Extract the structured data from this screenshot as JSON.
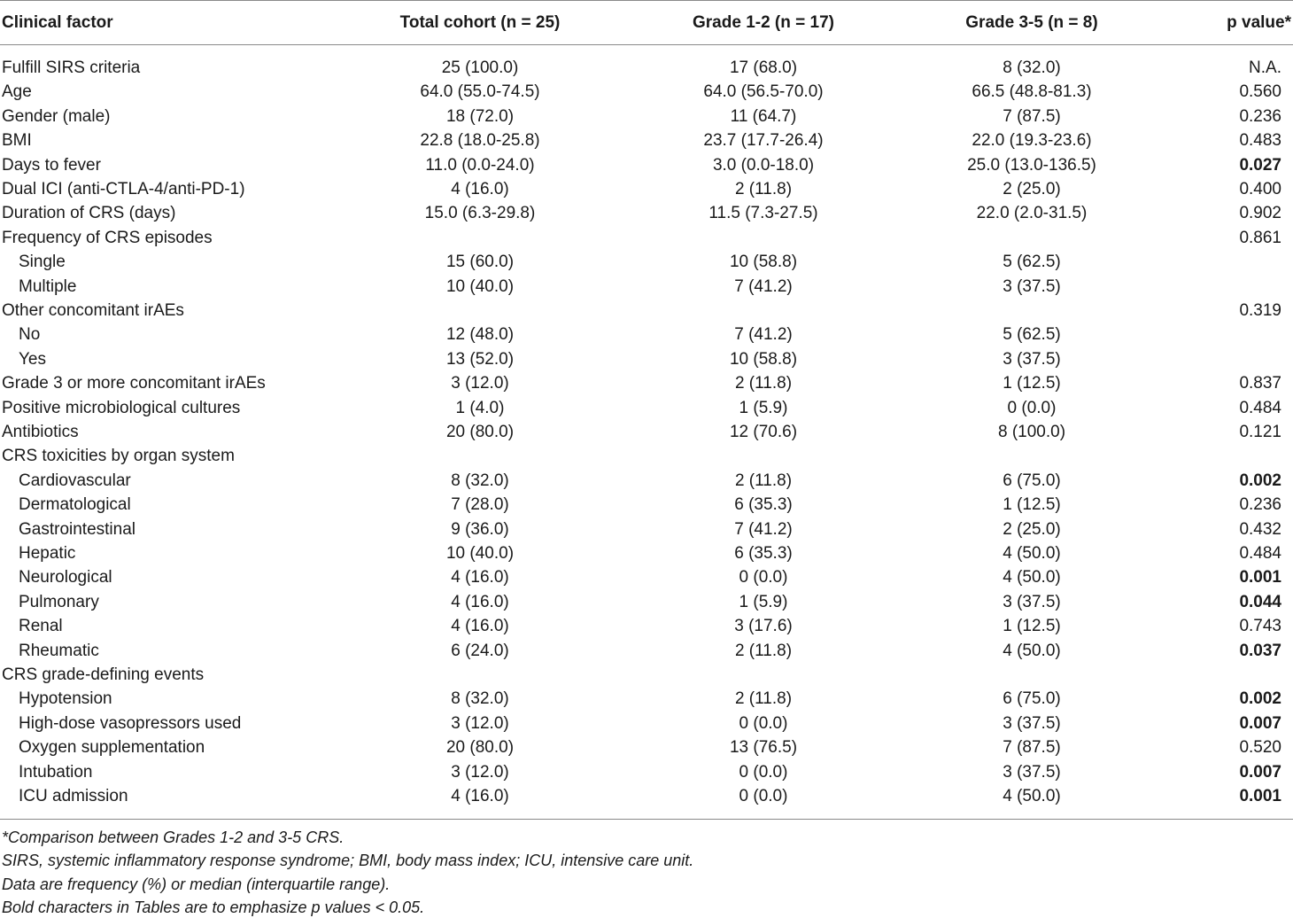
{
  "table": {
    "headers": {
      "clinical_factor": "Clinical factor",
      "total": "Total cohort (n = 25)",
      "grade_1_2": "Grade 1-2 (n = 17)",
      "grade_3_5": "Grade 3-5 (n = 8)",
      "p_value": "p value*"
    },
    "rows": [
      {
        "label": "Fulfill SIRS criteria",
        "indent": false,
        "total": "25 (100.0)",
        "g12": "17 (68.0)",
        "g35": "8 (32.0)",
        "p": "N.A.",
        "p_bold": false
      },
      {
        "label": "Age",
        "indent": false,
        "total": "64.0 (55.0-74.5)",
        "g12": "64.0 (56.5-70.0)",
        "g35": "66.5 (48.8-81.3)",
        "p": "0.560",
        "p_bold": false
      },
      {
        "label": "Gender (male)",
        "indent": false,
        "total": "18 (72.0)",
        "g12": "11 (64.7)",
        "g35": "7 (87.5)",
        "p": "0.236",
        "p_bold": false
      },
      {
        "label": "BMI",
        "indent": false,
        "total": "22.8 (18.0-25.8)",
        "g12": "23.7 (17.7-26.4)",
        "g35": "22.0 (19.3-23.6)",
        "p": "0.483",
        "p_bold": false
      },
      {
        "label": "Days to fever",
        "indent": false,
        "total": "11.0 (0.0-24.0)",
        "g12": "3.0 (0.0-18.0)",
        "g35": "25.0 (13.0-136.5)",
        "p": "0.027",
        "p_bold": true
      },
      {
        "label": "Dual ICI (anti-CTLA-4/anti-PD-1)",
        "indent": false,
        "total": "4 (16.0)",
        "g12": "2 (11.8)",
        "g35": "2 (25.0)",
        "p": "0.400",
        "p_bold": false
      },
      {
        "label": "Duration of CRS (days)",
        "indent": false,
        "total": "15.0 (6.3-29.8)",
        "g12": "11.5 (7.3-27.5)",
        "g35": "22.0 (2.0-31.5)",
        "p": "0.902",
        "p_bold": false
      },
      {
        "label": "Frequency of CRS episodes",
        "indent": false,
        "total": "",
        "g12": "",
        "g35": "",
        "p": "0.861",
        "p_bold": false
      },
      {
        "label": "Single",
        "indent": true,
        "total": "15 (60.0)",
        "g12": "10 (58.8)",
        "g35": "5 (62.5)",
        "p": "",
        "p_bold": false
      },
      {
        "label": "Multiple",
        "indent": true,
        "total": "10 (40.0)",
        "g12": "7 (41.2)",
        "g35": "3 (37.5)",
        "p": "",
        "p_bold": false
      },
      {
        "label": "Other concomitant irAEs",
        "indent": false,
        "total": "",
        "g12": "",
        "g35": "",
        "p": "0.319",
        "p_bold": false
      },
      {
        "label": "No",
        "indent": true,
        "total": "12 (48.0)",
        "g12": "7 (41.2)",
        "g35": "5 (62.5)",
        "p": "",
        "p_bold": false
      },
      {
        "label": "Yes",
        "indent": true,
        "total": "13 (52.0)",
        "g12": "10 (58.8)",
        "g35": "3 (37.5)",
        "p": "",
        "p_bold": false
      },
      {
        "label": "Grade 3 or more concomitant irAEs",
        "indent": false,
        "total": "3 (12.0)",
        "g12": "2 (11.8)",
        "g35": "1 (12.5)",
        "p": "0.837",
        "p_bold": false
      },
      {
        "label": "Positive microbiological cultures",
        "indent": false,
        "total": "1 (4.0)",
        "g12": "1 (5.9)",
        "g35": "0 (0.0)",
        "p": "0.484",
        "p_bold": false
      },
      {
        "label": "Antibiotics",
        "indent": false,
        "total": "20 (80.0)",
        "g12": "12 (70.6)",
        "g35": "8 (100.0)",
        "p": "0.121",
        "p_bold": false
      },
      {
        "label": "CRS toxicities by organ system",
        "indent": false,
        "total": "",
        "g12": "",
        "g35": "",
        "p": "",
        "p_bold": false
      },
      {
        "label": "Cardiovascular",
        "indent": true,
        "total": "8 (32.0)",
        "g12": "2 (11.8)",
        "g35": "6 (75.0)",
        "p": "0.002",
        "p_bold": true
      },
      {
        "label": "Dermatological",
        "indent": true,
        "total": "7 (28.0)",
        "g12": "6 (35.3)",
        "g35": "1 (12.5)",
        "p": "0.236",
        "p_bold": false
      },
      {
        "label": "Gastrointestinal",
        "indent": true,
        "total": "9 (36.0)",
        "g12": "7 (41.2)",
        "g35": "2 (25.0)",
        "p": "0.432",
        "p_bold": false
      },
      {
        "label": "Hepatic",
        "indent": true,
        "total": "10 (40.0)",
        "g12": "6 (35.3)",
        "g35": "4 (50.0)",
        "p": "0.484",
        "p_bold": false
      },
      {
        "label": "Neurological",
        "indent": true,
        "total": "4 (16.0)",
        "g12": "0 (0.0)",
        "g35": "4 (50.0)",
        "p": "0.001",
        "p_bold": true
      },
      {
        "label": "Pulmonary",
        "indent": true,
        "total": "4 (16.0)",
        "g12": "1 (5.9)",
        "g35": "3 (37.5)",
        "p": "0.044",
        "p_bold": true
      },
      {
        "label": "Renal",
        "indent": true,
        "total": "4 (16.0)",
        "g12": "3 (17.6)",
        "g35": "1 (12.5)",
        "p": "0.743",
        "p_bold": false
      },
      {
        "label": "Rheumatic",
        "indent": true,
        "total": "6 (24.0)",
        "g12": "2 (11.8)",
        "g35": "4 (50.0)",
        "p": "0.037",
        "p_bold": true
      },
      {
        "label": "CRS grade-defining events",
        "indent": false,
        "total": "",
        "g12": "",
        "g35": "",
        "p": "",
        "p_bold": false
      },
      {
        "label": "Hypotension",
        "indent": true,
        "total": "8 (32.0)",
        "g12": "2 (11.8)",
        "g35": "6 (75.0)",
        "p": "0.002",
        "p_bold": true
      },
      {
        "label": "High-dose vasopressors used",
        "indent": true,
        "total": "3 (12.0)",
        "g12": "0 (0.0)",
        "g35": "3 (37.5)",
        "p": "0.007",
        "p_bold": true
      },
      {
        "label": "Oxygen supplementation",
        "indent": true,
        "total": "20 (80.0)",
        "g12": "13 (76.5)",
        "g35": "7 (87.5)",
        "p": "0.520",
        "p_bold": false
      },
      {
        "label": "Intubation",
        "indent": true,
        "total": "3 (12.0)",
        "g12": "0 (0.0)",
        "g35": "3 (37.5)",
        "p": "0.007",
        "p_bold": true
      },
      {
        "label": "ICU admission",
        "indent": true,
        "total": "4 (16.0)",
        "g12": "0 (0.0)",
        "g35": "4 (50.0)",
        "p": "0.001",
        "p_bold": true
      }
    ]
  },
  "notes": [
    "*Comparison between Grades 1-2 and 3-5 CRS.",
    "SIRS, systemic inflammatory response syndrome; BMI, body mass index; ICU, intensive care unit.",
    "Data are frequency (%) or median (interquartile range).",
    "Bold characters in Tables are to emphasize p values < 0.05."
  ]
}
